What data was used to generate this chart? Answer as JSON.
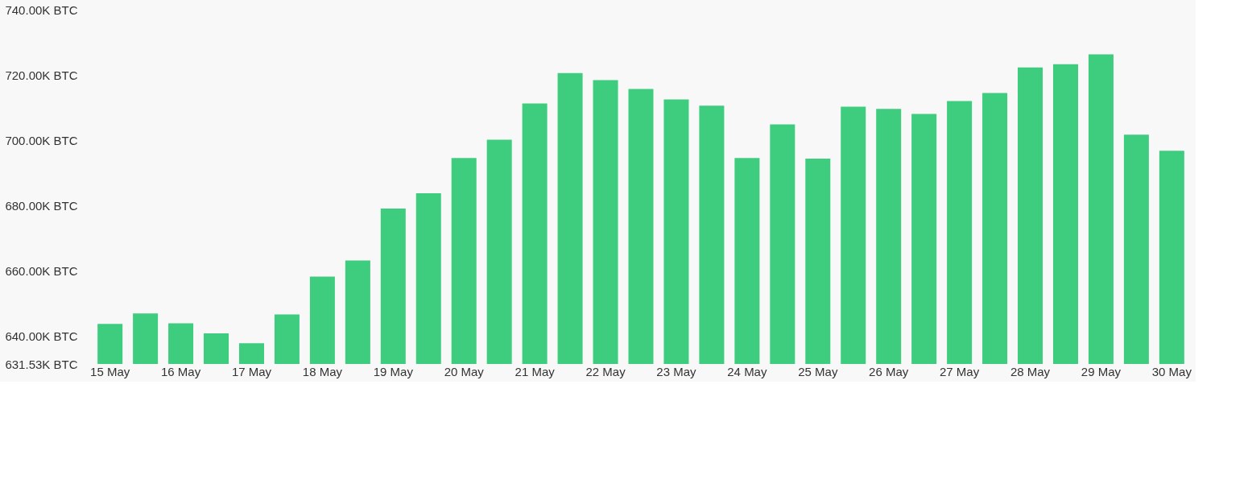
{
  "chart_data": {
    "type": "bar",
    "categories": [
      "15 May",
      null,
      "16 May",
      null,
      "17 May",
      null,
      "18 May",
      null,
      "19 May",
      null,
      "20 May",
      null,
      "21 May",
      null,
      "22 May",
      null,
      "23 May",
      null,
      "24 May",
      null,
      "25 May",
      null,
      "26 May",
      null,
      "27 May",
      null,
      "28 May",
      null,
      "29 May",
      null,
      "30 May"
    ],
    "values": [
      643.8,
      647.0,
      644.0,
      640.9,
      637.9,
      646.7,
      658.3,
      663.2,
      679.1,
      683.8,
      694.6,
      700.2,
      711.3,
      720.6,
      718.4,
      715.7,
      712.5,
      710.6,
      694.6,
      704.9,
      694.4,
      710.3,
      709.6,
      708.1,
      712.0,
      714.5,
      722.3,
      723.3,
      726.3,
      701.7,
      696.8
    ],
    "color": "#3ecc7e",
    "ylim": [
      631.53,
      740
    ],
    "yticks": [
      {
        "value": 631.53,
        "label": "631.53K BTC"
      },
      {
        "value": 640,
        "label": "640.00K BTC"
      },
      {
        "value": 660,
        "label": "660.00K BTC"
      },
      {
        "value": 680,
        "label": "680.00K BTC"
      },
      {
        "value": 700,
        "label": "700.00K BTC"
      },
      {
        "value": 720,
        "label": "720.00K BTC"
      },
      {
        "value": 740,
        "label": "740.00K BTC"
      }
    ],
    "grid": false
  }
}
